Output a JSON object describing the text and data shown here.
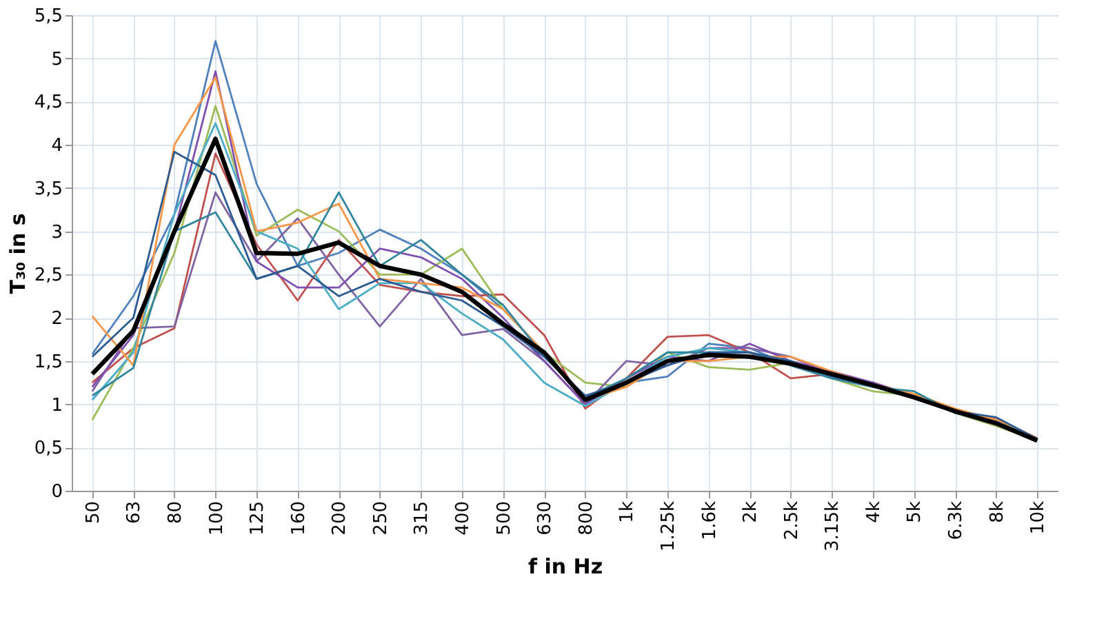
{
  "chart_data": {
    "type": "line",
    "xlabel": "f in Hz",
    "ylabel": "T₃₀ in s",
    "categories": [
      "50",
      "63",
      "80",
      "100",
      "125",
      "160",
      "200",
      "250",
      "315",
      "400",
      "500",
      "630",
      "800",
      "1k",
      "1.25k",
      "1.6k",
      "2k",
      "2.5k",
      "3.15k",
      "4k",
      "5k",
      "6.3k",
      "8k",
      "10k"
    ],
    "series": [
      {
        "color": "#4f81bd",
        "values": [
          1.58,
          2.25,
          3.2,
          5.2,
          3.55,
          2.6,
          2.75,
          3.02,
          2.8,
          2.5,
          2.1,
          1.6,
          1.05,
          1.25,
          1.32,
          1.7,
          1.65,
          1.45,
          1.3,
          1.25,
          1.1,
          0.92,
          0.82,
          0.6
        ]
      },
      {
        "color": "#c0504d",
        "values": [
          1.25,
          1.65,
          1.88,
          3.9,
          2.85,
          2.2,
          2.9,
          2.38,
          2.3,
          2.25,
          2.27,
          1.8,
          0.95,
          1.3,
          1.78,
          1.8,
          1.6,
          1.3,
          1.35,
          1.25,
          1.1,
          0.9,
          0.83,
          0.61
        ]
      },
      {
        "color": "#9bbb59",
        "values": [
          0.82,
          1.65,
          2.75,
          4.45,
          2.95,
          3.25,
          3.0,
          2.5,
          2.5,
          2.8,
          2.1,
          1.6,
          1.25,
          1.2,
          1.6,
          1.43,
          1.4,
          1.48,
          1.3,
          1.15,
          1.1,
          0.9,
          0.75,
          0.58
        ]
      },
      {
        "color": "#8064a2",
        "values": [
          1.15,
          1.88,
          1.9,
          3.45,
          2.65,
          3.15,
          2.5,
          1.9,
          2.45,
          1.8,
          1.87,
          1.5,
          1.0,
          1.5,
          1.45,
          1.65,
          1.65,
          1.55,
          1.35,
          1.25,
          1.08,
          0.92,
          0.8,
          0.58
        ]
      },
      {
        "color": "#7f4fb0",
        "values": [
          1.2,
          1.8,
          3.0,
          4.85,
          2.65,
          2.35,
          2.35,
          2.8,
          2.7,
          2.45,
          2.0,
          1.5,
          1.0,
          1.3,
          1.55,
          1.5,
          1.7,
          1.5,
          1.38,
          1.25,
          1.08,
          0.92,
          0.8,
          0.58
        ]
      },
      {
        "color": "#4bacc6",
        "values": [
          1.05,
          1.6,
          3.2,
          4.25,
          3.0,
          2.8,
          2.1,
          2.4,
          2.4,
          2.05,
          1.75,
          1.25,
          0.98,
          1.25,
          1.55,
          1.65,
          1.6,
          1.5,
          1.3,
          1.2,
          1.1,
          0.9,
          0.78,
          0.58
        ]
      },
      {
        "color": "#f79646",
        "values": [
          2.02,
          1.45,
          4.0,
          4.78,
          3.0,
          3.1,
          3.32,
          2.45,
          2.4,
          2.35,
          2.1,
          1.6,
          1.05,
          1.2,
          1.5,
          1.5,
          1.55,
          1.55,
          1.38,
          1.22,
          1.12,
          0.95,
          0.82,
          0.61
        ]
      },
      {
        "color": "#31859c",
        "values": [
          1.1,
          1.42,
          3.0,
          3.22,
          2.45,
          2.6,
          3.45,
          2.6,
          2.9,
          2.5,
          2.15,
          1.55,
          1.08,
          1.3,
          1.6,
          1.6,
          1.6,
          1.45,
          1.3,
          1.2,
          1.15,
          0.9,
          0.8,
          0.6
        ]
      },
      {
        "color": "#2c5a92",
        "values": [
          1.55,
          2.0,
          3.92,
          3.65,
          2.45,
          2.6,
          2.25,
          2.45,
          2.3,
          2.2,
          1.9,
          1.55,
          1.1,
          1.25,
          1.45,
          1.6,
          1.6,
          1.5,
          1.32,
          1.22,
          1.08,
          0.92,
          0.85,
          0.6
        ]
      },
      {
        "color": "#000000",
        "values": [
          1.35,
          1.85,
          3.0,
          4.07,
          2.75,
          2.74,
          2.87,
          2.6,
          2.5,
          2.3,
          1.93,
          1.6,
          1.05,
          1.25,
          1.5,
          1.57,
          1.55,
          1.47,
          1.35,
          1.22,
          1.08,
          0.92,
          0.78,
          0.58
        ]
      }
    ],
    "ylim": [
      0,
      5.5
    ],
    "yticks": [
      0,
      {
        "value": 0.5,
        "label": "0,5"
      },
      1,
      {
        "value": 1.5,
        "label": "1,5"
      },
      2,
      {
        "value": 2.5,
        "label": "2,5"
      },
      3,
      {
        "value": 3.5,
        "label": "3,5"
      },
      4,
      {
        "value": 4.5,
        "label": "4,5"
      },
      5,
      {
        "value": 5.5,
        "label": "5,5"
      }
    ],
    "grid": true,
    "marker": "none",
    "line_style": "solid"
  }
}
